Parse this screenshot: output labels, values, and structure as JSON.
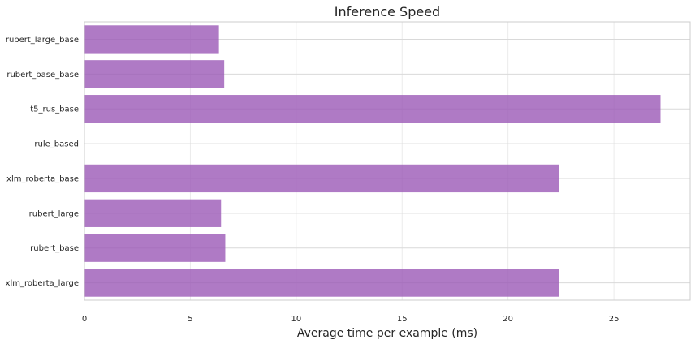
{
  "chart_data": {
    "type": "bar",
    "orientation": "horizontal",
    "title": "Inference Speed",
    "xlabel": "Average time per example (ms)",
    "ylabel": "",
    "categories": [
      "rubert_large_base",
      "rubert_base_base",
      "t5_rus_base",
      "rule_based",
      "xlm_roberta_base",
      "rubert_large",
      "rubert_base",
      "xlm_roberta_large"
    ],
    "values": [
      6.35,
      6.6,
      27.2,
      0,
      22.4,
      6.45,
      6.65,
      22.4
    ],
    "xlim": [
      0,
      28.6
    ],
    "xticks": [
      0,
      5,
      10,
      15,
      20,
      25
    ],
    "grid": true,
    "bar_color": "#9b59b6",
    "bar_opacity": 0.8
  }
}
